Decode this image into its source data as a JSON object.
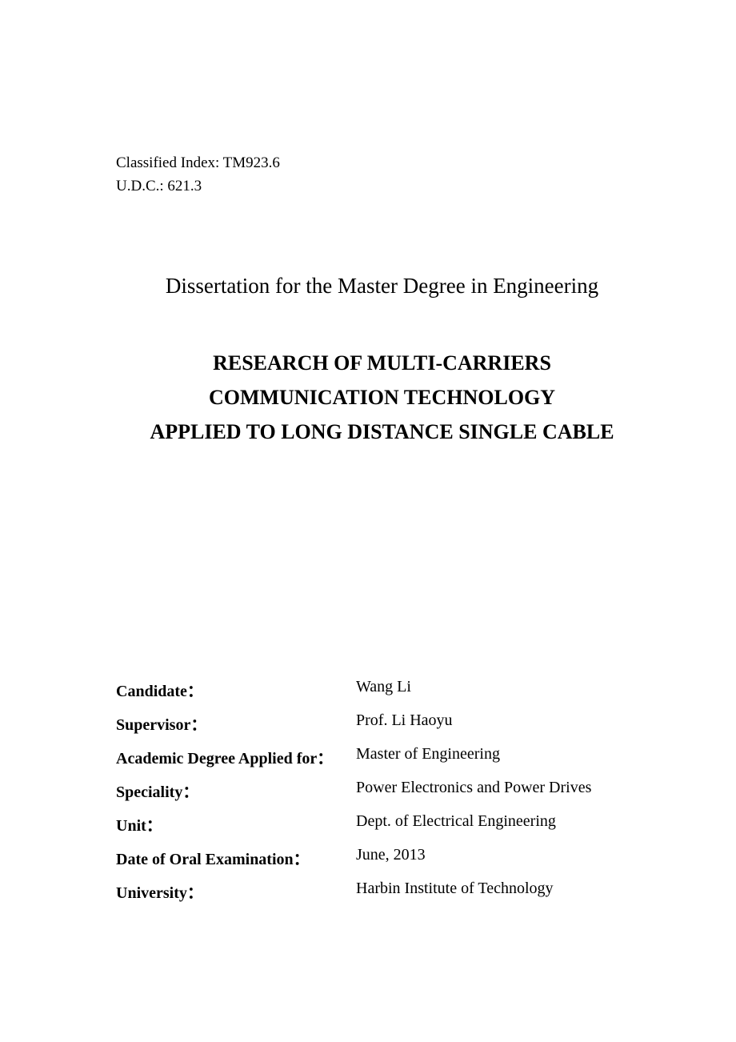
{
  "classification": {
    "classified_index": "Classified Index: TM923.6",
    "udc": "U.D.C.: 621.3"
  },
  "degree_line": "Dissertation for the Master Degree in Engineering",
  "title": {
    "line1": "RESEARCH OF MULTI-CARRIERS",
    "line2": "COMMUNICATION TECHNOLOGY",
    "line3": "APPLIED TO LONG DISTANCE SINGLE CABLE"
  },
  "info": [
    {
      "label": "Candidate：",
      "value": "Wang Li"
    },
    {
      "label": "Supervisor：",
      "value": "Prof. Li Haoyu"
    },
    {
      "label": "Academic Degree Applied for：",
      "value": "Master of Engineering"
    },
    {
      "label": "Speciality：",
      "value": "Power Electronics and Power Drives"
    },
    {
      "label": "Unit：",
      "value": "Dept. of Electrical Engineering"
    },
    {
      "label": "Date of Oral Examination：",
      "value": "June, 2013"
    },
    {
      "label": "University：",
      "value": "Harbin Institute of Technology"
    }
  ]
}
